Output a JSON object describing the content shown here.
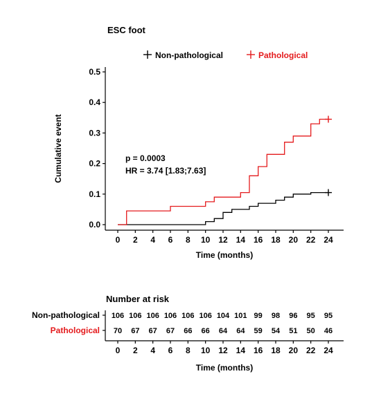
{
  "chart_data": {
    "type": "line",
    "title": "ESC foot",
    "xlabel": "Time (months)",
    "ylabel": "Cumulative event",
    "xlim": [
      0,
      24
    ],
    "ylim": [
      0,
      0.5
    ],
    "x_ticks": [
      "0",
      "2",
      "4",
      "6",
      "8",
      "10",
      "12",
      "14",
      "16",
      "18",
      "20",
      "22",
      "24"
    ],
    "y_ticks": [
      "0.0",
      "0.1",
      "0.2",
      "0.3",
      "0.4",
      "0.5"
    ],
    "legend_position": "top",
    "annotation": {
      "p": "p = 0.0003",
      "hr": "HR = 3.74 [1.83;7.63]"
    },
    "series": [
      {
        "name": "Non-pathological",
        "color": "#000000",
        "steps": [
          [
            0,
            0.0
          ],
          [
            10,
            0.0
          ],
          [
            10,
            0.01
          ],
          [
            11,
            0.01
          ],
          [
            11,
            0.02
          ],
          [
            12,
            0.02
          ],
          [
            12,
            0.04
          ],
          [
            13,
            0.04
          ],
          [
            13,
            0.05
          ],
          [
            15,
            0.05
          ],
          [
            15,
            0.06
          ],
          [
            16,
            0.06
          ],
          [
            16,
            0.07
          ],
          [
            18,
            0.07
          ],
          [
            18,
            0.08
          ],
          [
            19,
            0.08
          ],
          [
            19,
            0.09
          ],
          [
            20,
            0.09
          ],
          [
            20,
            0.1
          ],
          [
            22,
            0.1
          ],
          [
            22,
            0.105
          ],
          [
            24,
            0.105
          ]
        ],
        "censor": [
          [
            24,
            0.105
          ]
        ]
      },
      {
        "name": "Pathological",
        "color": "#e41a1c",
        "steps": [
          [
            0,
            0.0
          ],
          [
            1,
            0.0
          ],
          [
            1,
            0.045
          ],
          [
            6,
            0.045
          ],
          [
            6,
            0.06
          ],
          [
            10,
            0.06
          ],
          [
            10,
            0.075
          ],
          [
            11,
            0.075
          ],
          [
            11,
            0.09
          ],
          [
            14,
            0.09
          ],
          [
            14,
            0.105
          ],
          [
            15,
            0.105
          ],
          [
            15,
            0.16
          ],
          [
            16,
            0.16
          ],
          [
            16,
            0.19
          ],
          [
            17,
            0.19
          ],
          [
            17,
            0.23
          ],
          [
            19,
            0.23
          ],
          [
            19,
            0.27
          ],
          [
            20,
            0.27
          ],
          [
            20,
            0.29
          ],
          [
            22,
            0.29
          ],
          [
            22,
            0.33
          ],
          [
            23,
            0.33
          ],
          [
            23,
            0.345
          ],
          [
            24,
            0.345
          ]
        ],
        "censor": [
          [
            24,
            0.345
          ]
        ]
      }
    ]
  },
  "risk_table": {
    "title": "Number at risk",
    "xlabel": "Time (months)",
    "groups": [
      {
        "name": "Non-pathological",
        "color": "#000000",
        "counts": [
          "106",
          "106",
          "106",
          "106",
          "106",
          "106",
          "104",
          "101",
          "99",
          "98",
          "96",
          "95",
          "95"
        ]
      },
      {
        "name": "Pathological",
        "color": "#e41a1c",
        "counts": [
          "70",
          "67",
          "67",
          "67",
          "66",
          "66",
          "64",
          "64",
          "59",
          "54",
          "51",
          "50",
          "46"
        ]
      }
    ]
  }
}
